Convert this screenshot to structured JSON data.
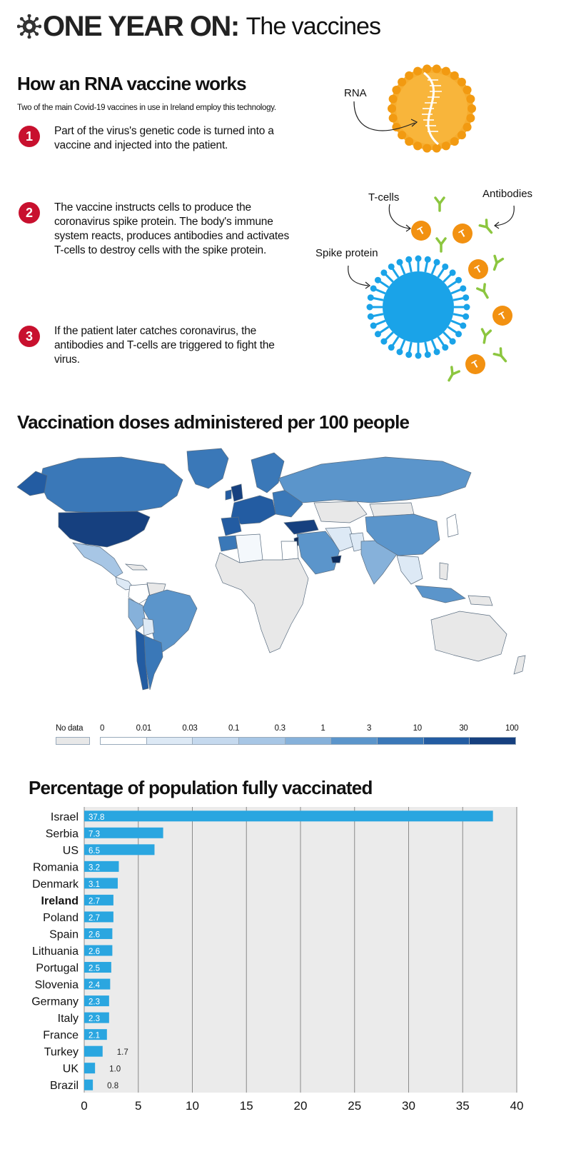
{
  "header": {
    "main": "ONE YEAR ON:",
    "sub": "The vaccines"
  },
  "rna": {
    "title": "How an RNA vaccine works",
    "subtitle": "Two of the main Covid-19 vaccines in use in Ireland employ this technology.",
    "steps": [
      {
        "num": "1",
        "text": "Part of the virus's genetic code is turned into a vaccine and injected into the patient."
      },
      {
        "num": "2",
        "text": "The vaccine instructs cells to produce the coronavirus spike protein. The body's immune system reacts, produces antibodies and activates T-cells to destroy cells with the spike protein."
      },
      {
        "num": "3",
        "text": "If the patient later catches coronavirus, the antibodies and T-cells are triggered to fight the virus."
      }
    ],
    "labels": {
      "rna": "RNA",
      "tcells": "T-cells",
      "antibodies": "Antibodies",
      "spike": "Spike protein"
    },
    "colors": {
      "accent_red": "#c8102e",
      "rna_orange": "#f6ad2f",
      "spike_blue": "#1aa3e8",
      "tcell_orange": "#f29111",
      "antibody_green": "#8cc63f"
    }
  },
  "map": {
    "title": "Vaccination doses administered per 100 people",
    "legend": {
      "no_data": "No data",
      "ticks": [
        "0",
        "0.01",
        "0.03",
        "0.1",
        "0.3",
        "1",
        "3",
        "10",
        "30",
        "100"
      ],
      "colors": [
        "#ffffff",
        "#dde9f5",
        "#c5d9ee",
        "#a7c6e5",
        "#86b1da",
        "#5b95cb",
        "#3a78b8",
        "#235ca2",
        "#16407f",
        "#0c2a5a"
      ],
      "no_data_color": "#e8e8e8"
    }
  },
  "bar_chart": {
    "title": "Percentage of population fully vaccinated",
    "highlight": "Ireland"
  },
  "chart_data": {
    "type": "bar",
    "orientation": "horizontal",
    "title": "Percentage of population fully vaccinated",
    "categories": [
      "Israel",
      "Serbia",
      "US",
      "Romania",
      "Denmark",
      "Ireland",
      "Poland",
      "Spain",
      "Lithuania",
      "Portugal",
      "Slovenia",
      "Germany",
      "Italy",
      "France",
      "Turkey",
      "UK",
      "Brazil"
    ],
    "values": [
      37.8,
      7.3,
      6.5,
      3.2,
      3.1,
      2.7,
      2.7,
      2.6,
      2.6,
      2.5,
      2.4,
      2.3,
      2.3,
      2.1,
      1.7,
      1.0,
      0.8
    ],
    "value_labels": [
      "37.8",
      "7.3",
      "6.5",
      "3.2",
      "3.1",
      "2.7",
      "2.7",
      "2.6",
      "2.6",
      "2.5",
      "2.4",
      "2.3",
      "2.3",
      "2.1",
      "1.7",
      "1.0",
      "0.8"
    ],
    "xlim": [
      0,
      40
    ],
    "xticks": [
      "0",
      "5",
      "10",
      "15",
      "20",
      "25",
      "30",
      "35",
      "40"
    ],
    "grid": true,
    "bar_color": "#2aa6e0",
    "background": "#ebebeb"
  }
}
